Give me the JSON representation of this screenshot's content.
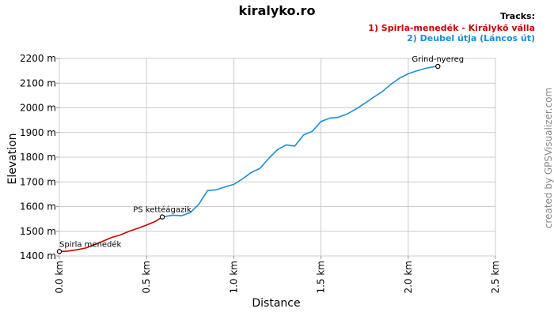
{
  "chart_data": {
    "type": "line",
    "title": "kiralyko.ro",
    "xlabel": "Distance",
    "ylabel": "Elevation",
    "xlim": [
      0,
      2.5
    ],
    "ylim": [
      1400,
      2200
    ],
    "x_unit": "km",
    "y_unit": "m",
    "x_ticks": [
      "0.0 km",
      "0.5 km",
      "1.0 km",
      "1.5 km",
      "2.0 km",
      "2.5 km"
    ],
    "y_ticks": [
      "1400 m",
      "1500 m",
      "1600 m",
      "1700 m",
      "1800 m",
      "1900 m",
      "2000 m",
      "2100 m",
      "2200 m"
    ],
    "grid": true,
    "legend_title": "Tracks:",
    "legend_position": "top-right",
    "series": [
      {
        "name": "1) Spirla-menedék - Királykő válla",
        "color": "#cc0000",
        "x": [
          0.0,
          0.05,
          0.1,
          0.15,
          0.2,
          0.25,
          0.3,
          0.35,
          0.4,
          0.45,
          0.5,
          0.55,
          0.59
        ],
        "y": [
          1418,
          1420,
          1425,
          1432,
          1445,
          1460,
          1475,
          1485,
          1500,
          1512,
          1525,
          1540,
          1558
        ]
      },
      {
        "name": "2) Deubel útja (Láncos út)",
        "color": "#1a8fd6",
        "x": [
          0.59,
          0.65,
          0.7,
          0.75,
          0.8,
          0.85,
          0.9,
          0.95,
          1.0,
          1.05,
          1.1,
          1.15,
          1.2,
          1.25,
          1.3,
          1.35,
          1.4,
          1.45,
          1.5,
          1.55,
          1.6,
          1.65,
          1.7,
          1.75,
          1.8,
          1.85,
          1.9,
          1.95,
          2.0,
          2.05,
          2.1,
          2.15,
          2.17
        ],
        "y": [
          1558,
          1565,
          1563,
          1575,
          1610,
          1665,
          1668,
          1680,
          1690,
          1712,
          1738,
          1755,
          1795,
          1830,
          1850,
          1845,
          1890,
          1905,
          1945,
          1958,
          1962,
          1975,
          1995,
          2018,
          2042,
          2065,
          2095,
          2120,
          2138,
          2150,
          2160,
          2167,
          2168
        ]
      }
    ],
    "waypoints": [
      {
        "label": "Spirla menedék",
        "x": 0.0,
        "y": 1418
      },
      {
        "label": "PS kettéágazik",
        "x": 0.59,
        "y": 1558
      },
      {
        "label": "Grind-nyereg",
        "x": 2.17,
        "y": 2168
      }
    ],
    "credit": "created by GPSVisualizer.com"
  }
}
